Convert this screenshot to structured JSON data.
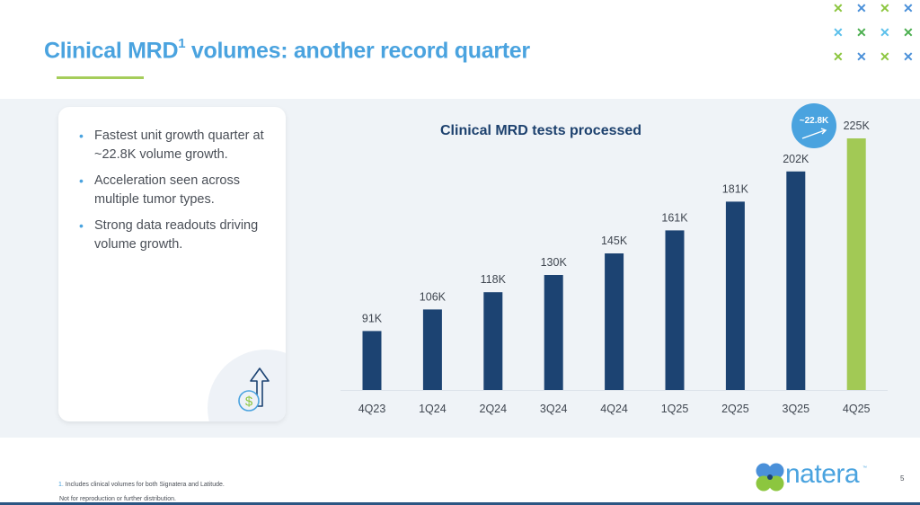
{
  "slide": {
    "title_main": "Clinical MRD",
    "title_sup": "1",
    "title_rest": " volumes: another record quarter",
    "page_number": "5"
  },
  "decoration": {
    "x_marks": [
      [
        "#8cc63f",
        "#4a90d9",
        "#8cc63f",
        "#4a90d9"
      ],
      [
        "#5bc0eb",
        "#4caf50",
        "#5bc0eb",
        "#4caf50"
      ],
      [
        "#8cc63f",
        "#4a90d9",
        "#8cc63f",
        "#4a90d9"
      ]
    ],
    "x_glyph": "✕"
  },
  "bullets": [
    {
      "text": "Fastest unit growth quarter at ~22.8K volume growth."
    },
    {
      "text": "Acceleration seen across multiple tumor types."
    },
    {
      "text": "Strong data readouts driving volume growth."
    }
  ],
  "bullet_glyph": "•",
  "card_icon": "dollar-growth-arrow-icon",
  "chart_data": {
    "type": "bar",
    "title": "Clinical MRD tests processed",
    "categories": [
      "4Q23",
      "1Q24",
      "2Q24",
      "3Q24",
      "4Q24",
      "1Q25",
      "2Q25",
      "3Q25",
      "4Q25"
    ],
    "values": [
      91,
      106,
      118,
      130,
      145,
      161,
      181,
      202,
      225
    ],
    "data_labels": [
      "91K",
      "106K",
      "118K",
      "130K",
      "145K",
      "161K",
      "181K",
      "202K",
      "225K"
    ],
    "units": "K tests",
    "highlight_index": 8,
    "bar_color": "#1c4372",
    "highlight_color": "#a2c955",
    "xlabel": "",
    "ylabel": "",
    "ylim": [
      50,
      235
    ],
    "grid": false,
    "annotation": {
      "text": "~22.8K",
      "color": "#4aa3df",
      "icon": "trend-arrow-icon"
    }
  },
  "footer": {
    "footnote_num": "1.",
    "footnote_text": "Includes clinical volumes for both Signatera and Latitude.",
    "notice": "Not for reproduction or further distribution.",
    "logo_text": "natera",
    "logo_tm": "™"
  }
}
